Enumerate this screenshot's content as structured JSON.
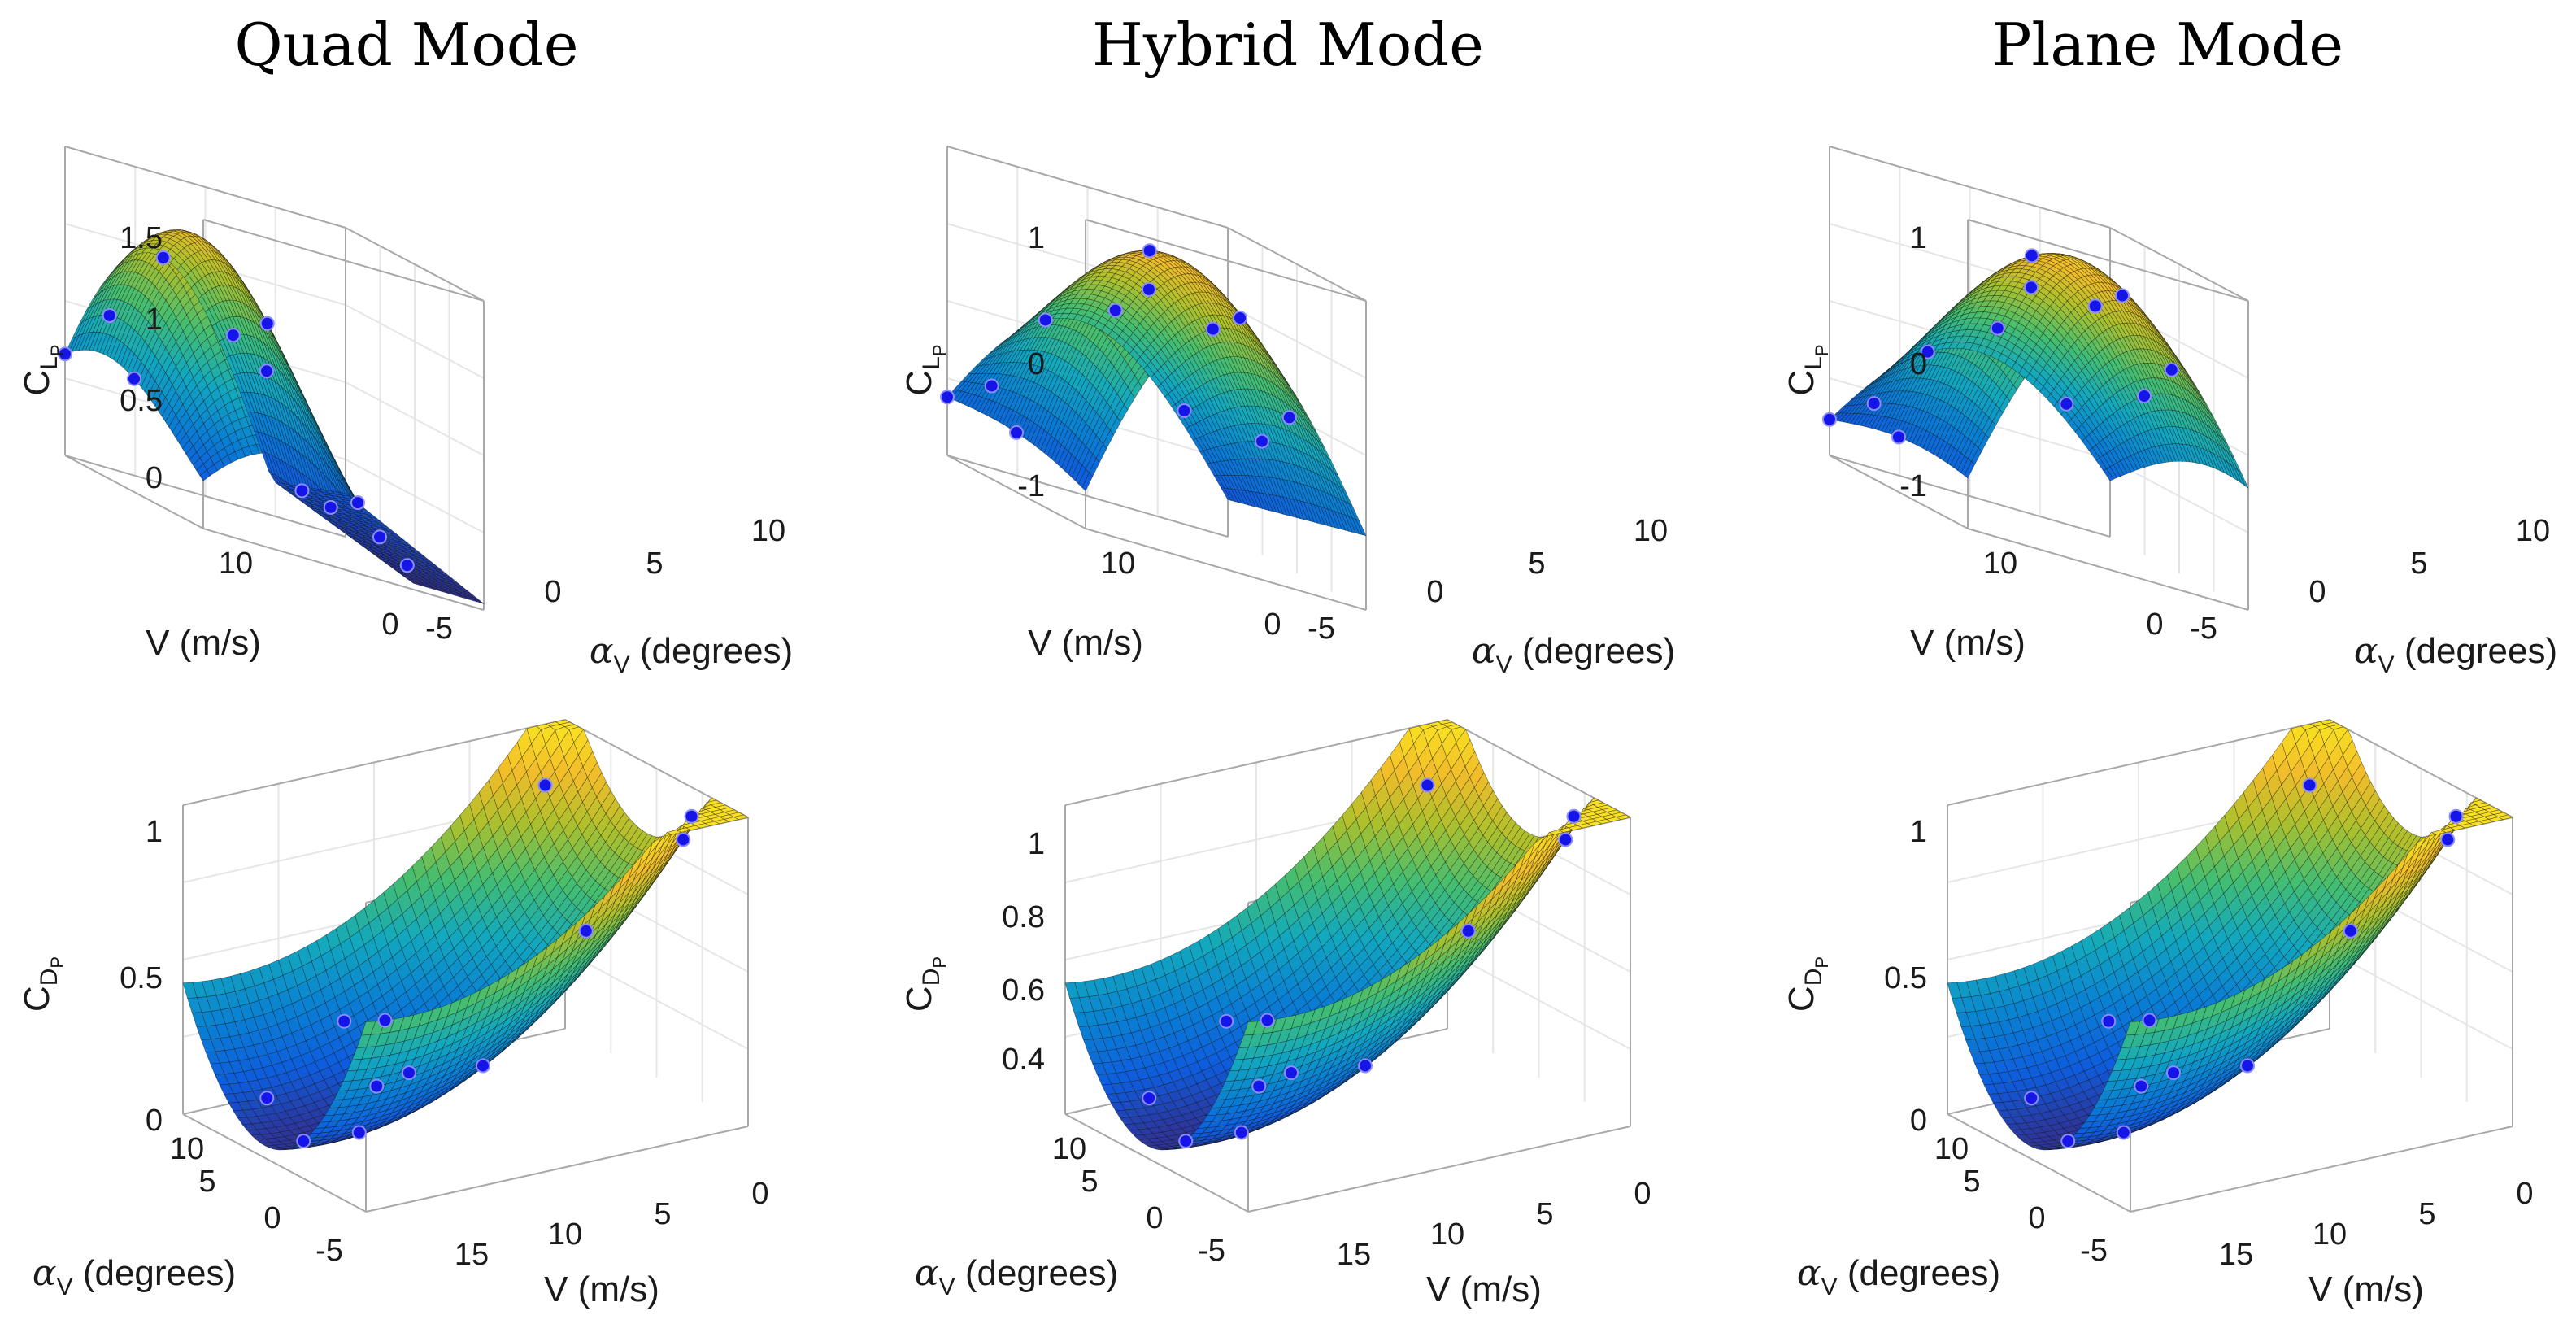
{
  "titles": [
    "Quad Mode",
    "Hybrid Mode",
    "Plane Mode"
  ],
  "colors": {
    "point_fill": "#1515e8",
    "point_stroke": "#8c8cff",
    "box": "#a8a8a8",
    "grid": "#e6e6e6",
    "colormap": "parula"
  },
  "labels": {
    "velocity": "V (m/s)",
    "alpha_symbol": "α",
    "alpha_sub": "V",
    "alpha_rest": " (degrees)",
    "cl_main": "C",
    "cl_sub": "L",
    "cl_subsub": "P",
    "cd_main": "C",
    "cd_sub": "D",
    "cd_subsub": "P"
  },
  "chart_data": [
    {
      "type": "surface",
      "title": "Quad Mode",
      "quantity": "C_L_P",
      "xlabel": "V (m/s)",
      "ylabel": "α_V (degrees)",
      "zlabel": "C_L_P",
      "xlim": [
        0,
        20
      ],
      "ylim": [
        -5,
        10
      ],
      "zlim": [
        0,
        1.5
      ],
      "xticks": [
        "0",
        "10"
      ],
      "yticks": [
        "-5",
        "0",
        "5",
        "10"
      ],
      "zticks": [
        "0",
        "0.5",
        "1",
        "1.5"
      ],
      "points": [
        [
          20,
          -5,
          0.15
        ],
        [
          16,
          -5,
          0.02
        ],
        [
          10,
          -5,
          0.0
        ],
        [
          20,
          0,
          0.75
        ],
        [
          20,
          2,
          1.25
        ],
        [
          15,
          2,
          0.6
        ],
        [
          15,
          5,
          1.35
        ],
        [
          20,
          8,
          1.4
        ],
        [
          15,
          8,
          0.9
        ],
        [
          10,
          8,
          0.78
        ],
        [
          2,
          6,
          0.55
        ],
        [
          2,
          3,
          1.1
        ]
      ]
    },
    {
      "type": "surface",
      "title": "Hybrid Mode",
      "quantity": "C_L_P",
      "xlabel": "V (m/s)",
      "ylabel": "α_V (degrees)",
      "zlabel": "C_L_P",
      "xlim": [
        0,
        20
      ],
      "ylim": [
        -5,
        10
      ],
      "zlim": [
        -1,
        1.2
      ],
      "xticks": [
        "0",
        "10"
      ],
      "yticks": [
        "-5",
        "0",
        "5",
        "10"
      ],
      "zticks": [
        "-1",
        "0",
        "1"
      ],
      "points": [
        [
          20,
          -5,
          -0.2
        ],
        [
          15,
          -5,
          -0.5
        ],
        [
          10,
          -5,
          -1.0
        ],
        [
          20,
          1,
          0.3
        ],
        [
          15,
          1,
          0.1
        ],
        [
          10,
          1,
          -0.9
        ],
        [
          15,
          5,
          1.1
        ],
        [
          10,
          5,
          0.6
        ],
        [
          5,
          5,
          0.9
        ],
        [
          5,
          10,
          0.1
        ],
        [
          2,
          8,
          0.6
        ],
        [
          2,
          2,
          0.55
        ]
      ]
    },
    {
      "type": "surface",
      "title": "Plane Mode",
      "quantity": "C_L_P",
      "xlabel": "V (m/s)",
      "ylabel": "α_V (degrees)",
      "zlabel": "C_L_P",
      "xlim": [
        0,
        20
      ],
      "ylim": [
        -5,
        10
      ],
      "zlim": [
        -1,
        1.2
      ],
      "xticks": [
        "0",
        "10"
      ],
      "yticks": [
        "-5",
        "0",
        "5",
        "10"
      ],
      "zticks": [
        "-1",
        "0",
        "1"
      ],
      "points": [
        [
          20,
          -5,
          -0.2
        ],
        [
          15,
          -5,
          -0.3
        ],
        [
          10,
          -5,
          -1.4
        ],
        [
          20,
          1,
          0.35
        ],
        [
          15,
          1,
          0.15
        ],
        [
          10,
          1,
          -0.9
        ],
        [
          15,
          5,
          1.1
        ],
        [
          10,
          5,
          0.85
        ],
        [
          5,
          5,
          0.95
        ],
        [
          5,
          10,
          0.7
        ],
        [
          2,
          8,
          0.7
        ],
        [
          2,
          2,
          0.85
        ]
      ]
    },
    {
      "type": "surface",
      "title": "Quad Mode",
      "quantity": "C_D_P",
      "xlabel": "V (m/s)",
      "ylabel": "α_V (degrees)",
      "zlabel": "C_D_P",
      "xlim": [
        0,
        20
      ],
      "ylim": [
        -5,
        10
      ],
      "zlim": [
        0,
        1.1
      ],
      "xticks": [
        "15",
        "10",
        "5",
        "0"
      ],
      "yticks": [
        "10",
        "5",
        "0",
        "-5"
      ],
      "zticks": [
        "0",
        "0.5",
        "1"
      ],
      "points": [
        [
          20,
          10,
          0.43
        ],
        [
          20,
          5,
          0.23
        ],
        [
          20,
          -5,
          0.0
        ],
        [
          15,
          10,
          0.6
        ],
        [
          15,
          5,
          0.4
        ],
        [
          15,
          0,
          0.3
        ],
        [
          15,
          -5,
          0.05
        ],
        [
          8,
          10,
          1.0
        ],
        [
          8,
          5,
          0.95
        ],
        [
          8,
          0,
          0.85
        ],
        [
          8,
          -5,
          0.1
        ],
        [
          2,
          5,
          0.9
        ]
      ]
    },
    {
      "type": "surface",
      "title": "Hybrid Mode",
      "quantity": "C_D_P",
      "xlabel": "V (m/s)",
      "ylabel": "α_V (degrees)",
      "zlabel": "C_D_P",
      "xlim": [
        0,
        20
      ],
      "ylim": [
        -5,
        10
      ],
      "zlim": [
        0.3,
        1.05
      ],
      "xticks": [
        "15",
        "10",
        "5",
        "0"
      ],
      "yticks": [
        "10",
        "5",
        "0",
        "-5"
      ],
      "zticks": [
        "0.4",
        "0.6",
        "0.8",
        "1"
      ],
      "points": [
        [
          20,
          10,
          0.42
        ],
        [
          20,
          5,
          0.32
        ],
        [
          20,
          -5,
          0.3
        ],
        [
          15,
          10,
          0.55
        ],
        [
          15,
          5,
          0.45
        ],
        [
          15,
          0,
          0.38
        ],
        [
          15,
          -5,
          0.33
        ],
        [
          8,
          10,
          1.0
        ],
        [
          8,
          5,
          0.85
        ],
        [
          8,
          0,
          0.8
        ],
        [
          8,
          -5,
          0.35
        ],
        [
          2,
          5,
          0.9
        ]
      ]
    },
    {
      "type": "surface",
      "title": "Plane Mode",
      "quantity": "C_D_P",
      "xlabel": "V (m/s)",
      "ylabel": "α_V (degrees)",
      "zlabel": "C_D_P",
      "xlim": [
        0,
        20
      ],
      "ylim": [
        -5,
        10
      ],
      "zlim": [
        0,
        1.1
      ],
      "xticks": [
        "15",
        "10",
        "5",
        "0"
      ],
      "yticks": [
        "10",
        "5",
        "0",
        "-5"
      ],
      "zticks": [
        "0",
        "0.5",
        "1"
      ],
      "points": [
        [
          20,
          10,
          0.43
        ],
        [
          20,
          5,
          0.24
        ],
        [
          20,
          -5,
          0.0
        ],
        [
          15,
          10,
          0.6
        ],
        [
          15,
          5,
          0.38
        ],
        [
          15,
          0,
          0.28
        ],
        [
          15,
          -5,
          0.05
        ],
        [
          8,
          10,
          1.05
        ],
        [
          8,
          5,
          0.95
        ],
        [
          8,
          0,
          0.85
        ],
        [
          8,
          -5,
          0.1
        ],
        [
          2,
          5,
          0.9
        ]
      ]
    }
  ]
}
